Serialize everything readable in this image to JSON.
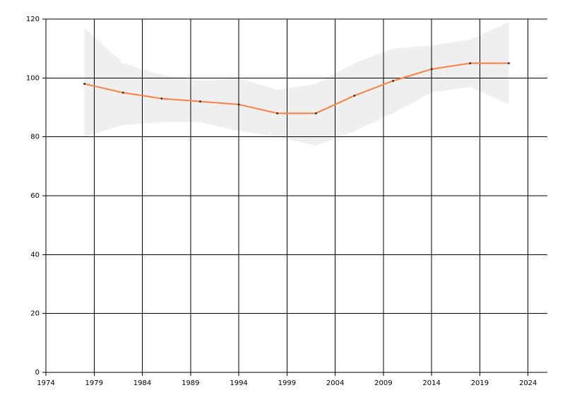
{
  "chart_data": {
    "type": "line",
    "x": [
      1978,
      1982,
      1986,
      1990,
      1994,
      1998,
      2002,
      2006,
      2010,
      2014,
      2018,
      2022
    ],
    "values": [
      98,
      95,
      93,
      92,
      91,
      88,
      88,
      94,
      99,
      103,
      105,
      105
    ],
    "color": "#ff7f3f",
    "band_upper": [
      117,
      105,
      101,
      99,
      100,
      96,
      98,
      105,
      110,
      111,
      113,
      119
    ],
    "band_lower": [
      80,
      84,
      85,
      85,
      82,
      80,
      77,
      82,
      88,
      95,
      97,
      91
    ],
    "band_color": "#efefef",
    "xlim": [
      1974,
      2026
    ],
    "xticks": [
      1974,
      1979,
      1984,
      1989,
      1994,
      1999,
      2004,
      2009,
      2014,
      2019,
      2024
    ],
    "ylim": [
      0,
      120
    ],
    "yticks": [
      0,
      20,
      40,
      60,
      80,
      100,
      120
    ],
    "grid": true
  }
}
